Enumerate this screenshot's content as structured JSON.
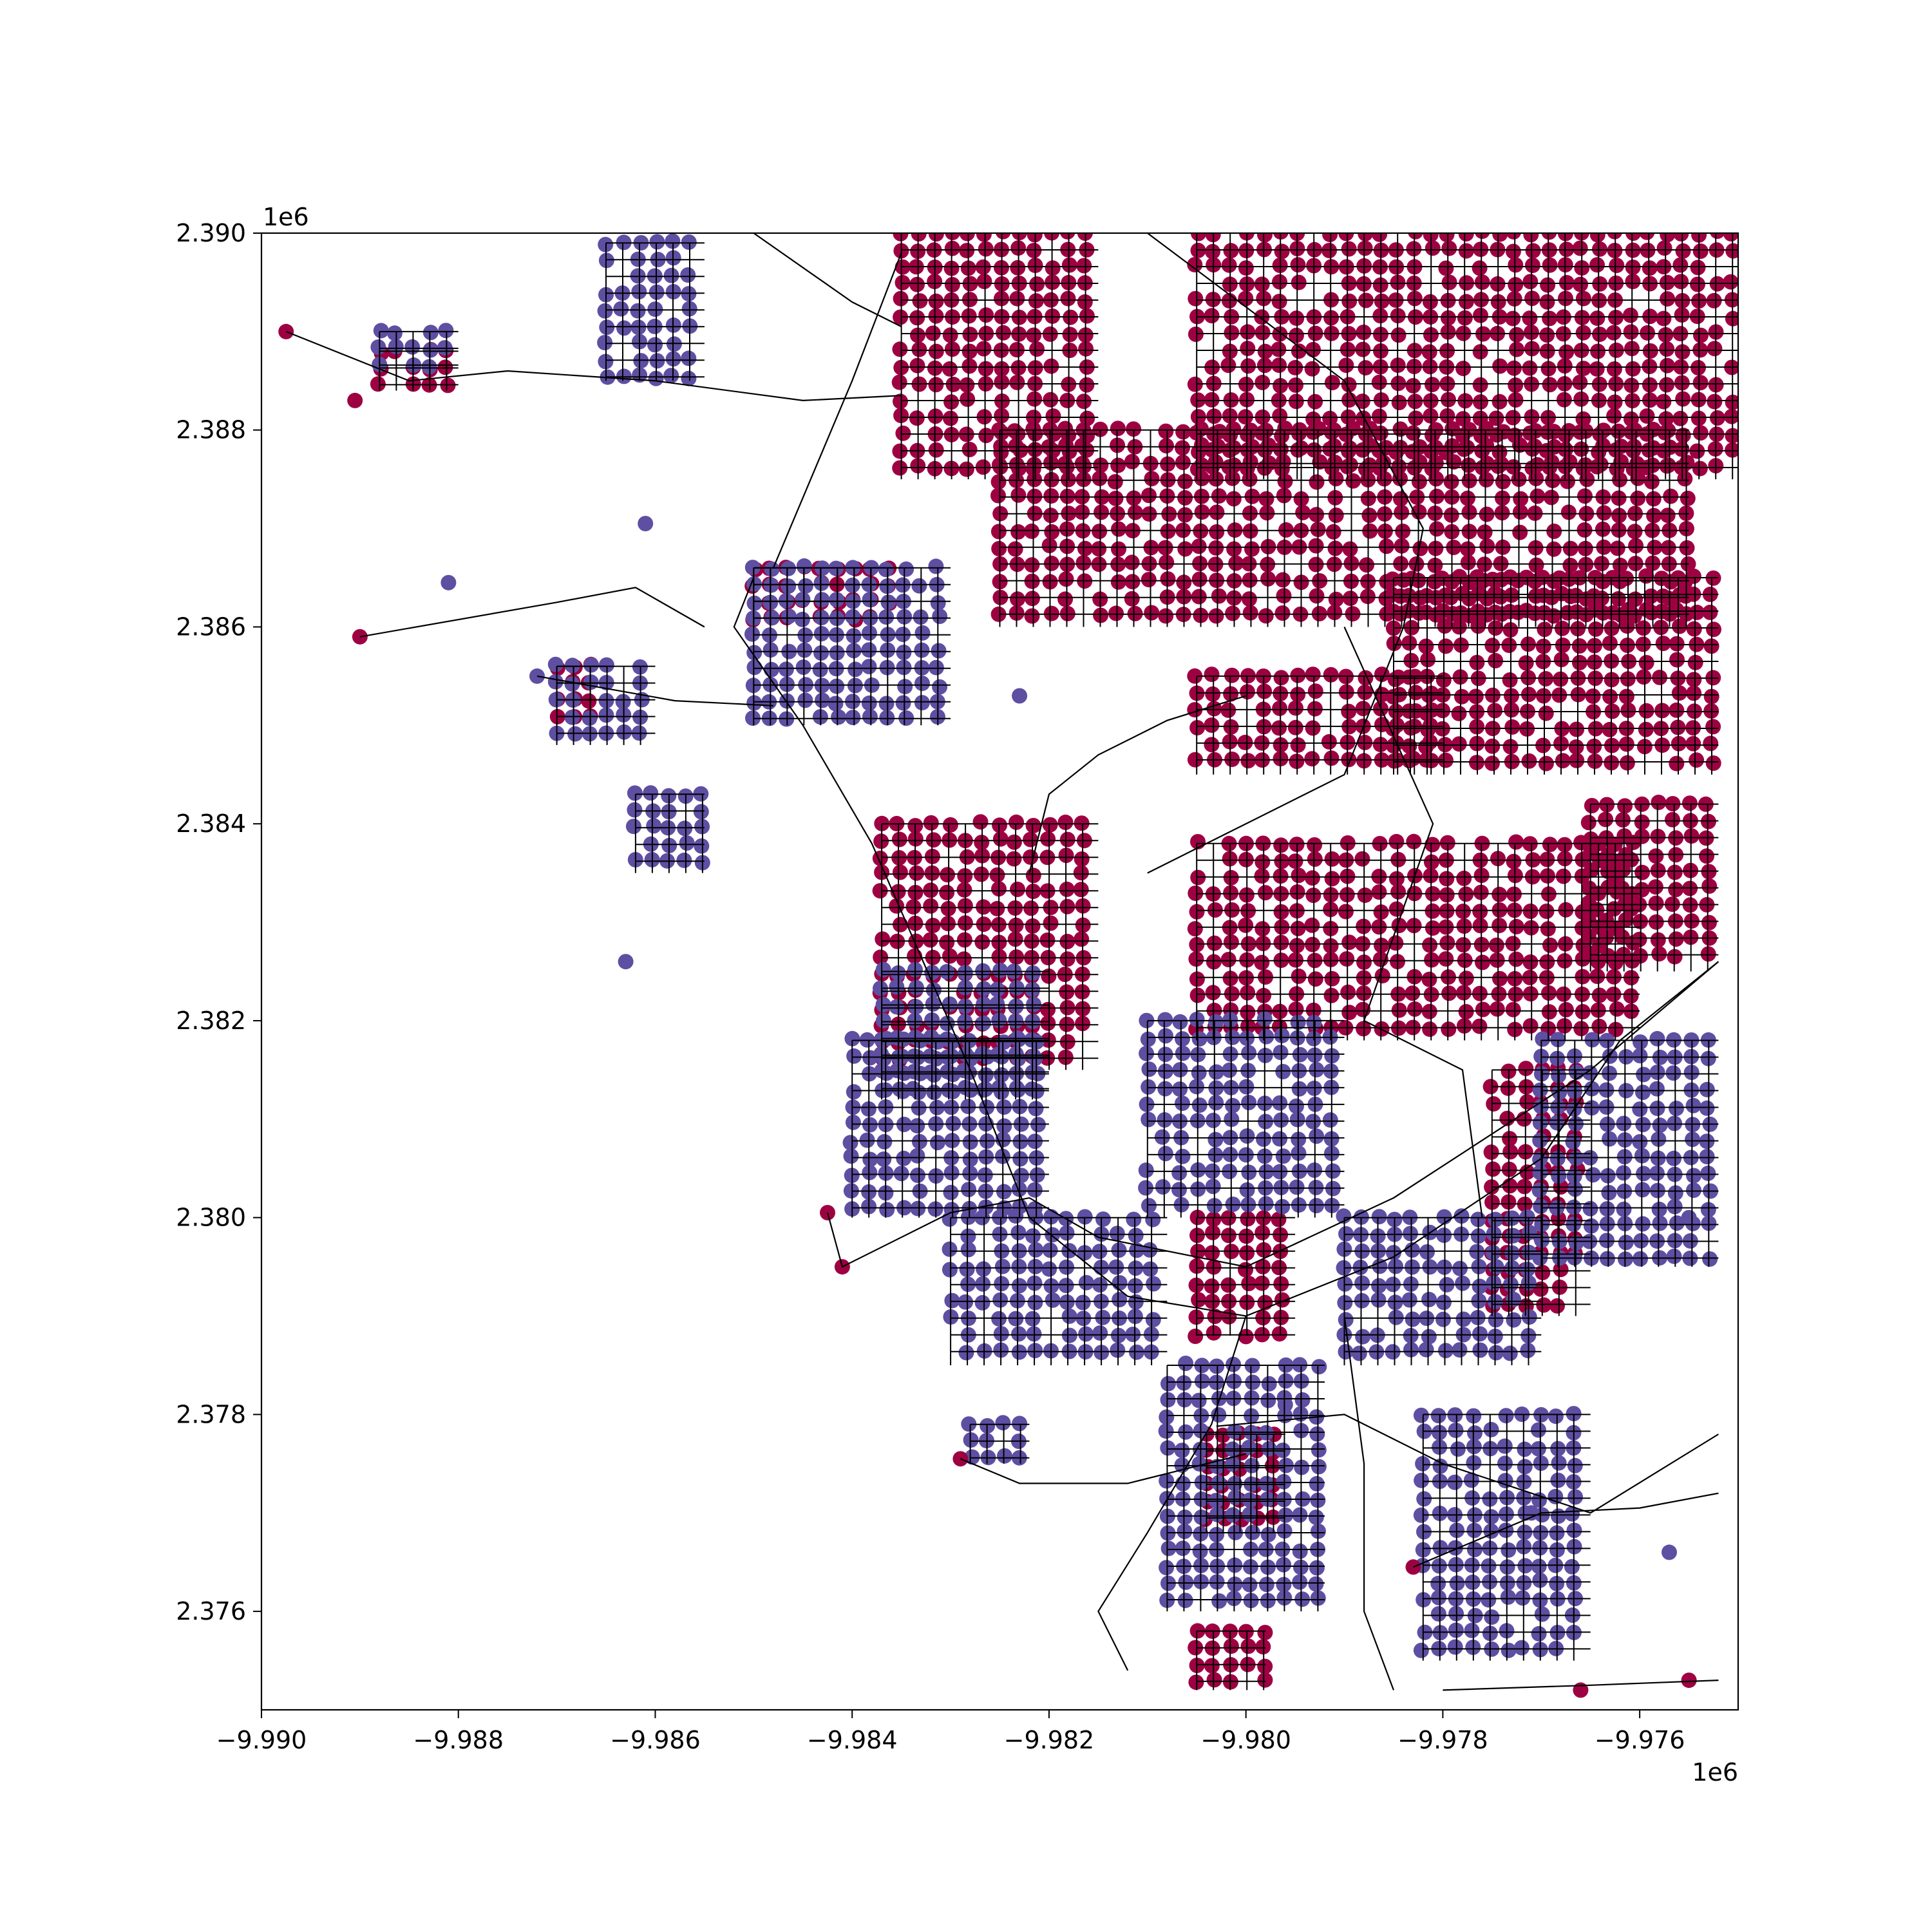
{
  "chart_data": {
    "type": "scatter",
    "title": "",
    "xlabel": "",
    "ylabel": "",
    "x_offset_label": "1e6",
    "y_offset_label": "1e6",
    "xlim": [
      -9.99,
      -9.975
    ],
    "ylim": [
      2.375,
      2.39
    ],
    "xticks": [
      "−9.990",
      "−9.988",
      "−9.986",
      "−9.984",
      "−9.982",
      "−9.980",
      "−9.978",
      "−9.976"
    ],
    "xtick_values": [
      -9.99,
      -9.988,
      -9.986,
      -9.984,
      -9.982,
      -9.98,
      -9.978,
      -9.976
    ],
    "yticks": [
      "2.376",
      "2.378",
      "2.380",
      "2.382",
      "2.384",
      "2.386",
      "2.388",
      "2.390"
    ],
    "ytick_values": [
      2.376,
      2.378,
      2.38,
      2.382,
      2.384,
      2.386,
      2.388,
      2.39
    ],
    "grid": false,
    "colors": {
      "red": "#9e0142",
      "purple": "#5e4fa2",
      "edges": "#000000"
    },
    "clusters": [
      {
        "color": "red",
        "x0": -9.9835,
        "x1": -9.9815,
        "y0": 2.3875,
        "y1": 2.39
      },
      {
        "color": "red",
        "x0": -9.9805,
        "x1": -9.975,
        "y0": 2.3875,
        "y1": 2.39
      },
      {
        "color": "red",
        "x0": -9.9825,
        "x1": -9.9755,
        "y0": 2.386,
        "y1": 2.388
      },
      {
        "color": "red",
        "x0": -9.9785,
        "x1": -9.9752,
        "y0": 2.3845,
        "y1": 2.3865
      },
      {
        "color": "red",
        "x0": -9.9805,
        "x1": -9.978,
        "y0": 2.3845,
        "y1": 2.3855
      },
      {
        "color": "red",
        "x0": -9.985,
        "x1": -9.9835,
        "y0": 2.386,
        "y1": 2.3866
      },
      {
        "color": "red",
        "x0": -9.9805,
        "x1": -9.976,
        "y0": 2.3818,
        "y1": 2.3838
      },
      {
        "color": "red",
        "x0": -9.9765,
        "x1": -9.9752,
        "y0": 2.3825,
        "y1": 2.3842
      },
      {
        "color": "red",
        "x0": -9.9837,
        "x1": -9.9815,
        "y0": 2.3815,
        "y1": 2.384
      },
      {
        "color": "red",
        "x0": -9.9775,
        "x1": -9.9765,
        "y0": 2.379,
        "y1": 2.3815
      },
      {
        "color": "red",
        "x0": -9.9805,
        "x1": -9.9795,
        "y0": 2.3788,
        "y1": 2.38
      },
      {
        "color": "red",
        "x0": -9.9804,
        "x1": -9.9796,
        "y0": 2.3768,
        "y1": 2.3778
      },
      {
        "color": "red",
        "x0": -9.9805,
        "x1": -9.9798,
        "y0": 2.3752,
        "y1": 2.3758
      },
      {
        "color": "red",
        "x0": -9.987,
        "x1": -9.9865,
        "y0": 2.385,
        "y1": 2.3856
      },
      {
        "color": "red",
        "x0": -9.9888,
        "x1": -9.988,
        "y0": 2.3884,
        "y1": 2.3888
      },
      {
        "color": "purple",
        "x0": -9.9865,
        "x1": -9.9855,
        "y0": 2.3885,
        "y1": 2.3899
      },
      {
        "color": "purple",
        "x0": -9.985,
        "x1": -9.983,
        "y0": 2.385,
        "y1": 2.3866
      },
      {
        "color": "purple",
        "x0": -9.9837,
        "x1": -9.982,
        "y0": 2.3812,
        "y1": 2.3825
      },
      {
        "color": "purple",
        "x0": -9.984,
        "x1": -9.982,
        "y0": 2.38,
        "y1": 2.3818
      },
      {
        "color": "purple",
        "x0": -9.981,
        "x1": -9.979,
        "y0": 2.38,
        "y1": 2.382
      },
      {
        "color": "purple",
        "x0": -9.979,
        "x1": -9.977,
        "y0": 2.3785,
        "y1": 2.38
      },
      {
        "color": "purple",
        "x0": -9.977,
        "x1": -9.9752,
        "y0": 2.3795,
        "y1": 2.3818
      },
      {
        "color": "purple",
        "x0": -9.983,
        "x1": -9.9808,
        "y0": 2.3785,
        "y1": 2.38
      },
      {
        "color": "purple",
        "x0": -9.9782,
        "x1": -9.9765,
        "y0": 2.3755,
        "y1": 2.378
      },
      {
        "color": "purple",
        "x0": -9.9808,
        "x1": -9.9792,
        "y0": 2.376,
        "y1": 2.3785
      },
      {
        "color": "purple",
        "x0": -9.987,
        "x1": -9.986,
        "y0": 2.3848,
        "y1": 2.3856
      },
      {
        "color": "purple",
        "x0": -9.9862,
        "x1": -9.9855,
        "y0": 2.3835,
        "y1": 2.3843
      },
      {
        "color": "purple",
        "x0": -9.9828,
        "x1": -9.9822,
        "y0": 2.3775,
        "y1": 2.3779
      },
      {
        "color": "purple",
        "x0": -9.9888,
        "x1": -9.988,
        "y0": 2.3885,
        "y1": 2.389
      }
    ],
    "isolated_points": [
      {
        "x": -9.98975,
        "y": 2.389,
        "color": "red"
      },
      {
        "x": -9.98905,
        "y": 2.3883,
        "color": "red"
      },
      {
        "x": -9.989,
        "y": 2.3859,
        "color": "red"
      },
      {
        "x": -9.98425,
        "y": 2.38005,
        "color": "red"
      },
      {
        "x": -9.9841,
        "y": 2.3795,
        "color": "red"
      },
      {
        "x": -9.9829,
        "y": 2.37755,
        "color": "red"
      },
      {
        "x": -9.9783,
        "y": 2.37645,
        "color": "red"
      },
      {
        "x": -9.9766,
        "y": 2.3752,
        "color": "red"
      },
      {
        "x": -9.9755,
        "y": 2.3753,
        "color": "red"
      },
      {
        "x": -9.9881,
        "y": 2.38645,
        "color": "purple"
      },
      {
        "x": -9.9861,
        "y": 2.38705,
        "color": "purple"
      },
      {
        "x": -9.9872,
        "y": 2.3855,
        "color": "purple"
      },
      {
        "x": -9.9863,
        "y": 2.3826,
        "color": "purple"
      },
      {
        "x": -9.9823,
        "y": 2.3853,
        "color": "purple"
      },
      {
        "x": -9.9796,
        "y": 2.3781,
        "color": "purple"
      },
      {
        "x": -9.9771,
        "y": 2.377,
        "color": "purple"
      },
      {
        "x": -9.9757,
        "y": 2.3766,
        "color": "purple"
      },
      {
        "x": -9.9755,
        "y": 2.38,
        "color": "purple"
      }
    ],
    "lines": [
      [
        [
          -9.98975,
          2.389
        ],
        [
          -9.9885,
          2.3885
        ],
        [
          -9.9875,
          2.3886
        ],
        [
          -9.986,
          2.3885
        ],
        [
          -9.9845,
          2.3883
        ],
        [
          -9.9835,
          2.38835
        ]
      ],
      [
        [
          -9.989,
          2.3859
        ],
        [
          -9.987,
          2.38625
        ],
        [
          -9.9862,
          2.3864
        ],
        [
          -9.9855,
          2.386
        ]
      ],
      [
        [
          -9.9872,
          2.3855
        ],
        [
          -9.9858,
          2.38525
        ],
        [
          -9.9848,
          2.3852
        ]
      ],
      [
        [
          -9.98425,
          2.38005
        ],
        [
          -9.9841,
          2.3795
        ],
        [
          -9.983,
          2.38005
        ],
        [
          -9.9822,
          2.3802
        ],
        [
          -9.9815,
          2.3798
        ],
        [
          -9.98,
          2.3795
        ],
        [
          -9.9785,
          2.3802
        ],
        [
          -9.9765,
          2.3815
        ],
        [
          -9.9752,
          2.3826
        ]
      ],
      [
        [
          -9.985,
          2.3865
        ],
        [
          -9.9852,
          2.386
        ],
        [
          -9.9845,
          2.385
        ],
        [
          -9.9838,
          2.3838
        ],
        [
          -9.9828,
          2.3815
        ],
        [
          -9.9822,
          2.38
        ],
        [
          -9.9812,
          2.3792
        ],
        [
          -9.98,
          2.379
        ],
        [
          -9.9785,
          2.3796
        ],
        [
          -9.977,
          2.3806
        ],
        [
          -9.9762,
          2.3818
        ],
        [
          -9.9752,
          2.3826
        ]
      ],
      [
        [
          -9.9848,
          2.3866
        ],
        [
          -9.984,
          2.3885
        ],
        [
          -9.9835,
          2.3898
        ]
      ],
      [
        [
          -9.985,
          2.39
        ],
        [
          -9.984,
          2.3893
        ],
        [
          -9.9835,
          2.38905
        ]
      ],
      [
        [
          -9.98,
          2.3853
        ],
        [
          -9.9808,
          2.38505
        ],
        [
          -9.9815,
          2.3847
        ],
        [
          -9.982,
          2.3843
        ],
        [
          -9.9822,
          2.3835
        ]
      ],
      [
        [
          -9.981,
          2.39
        ],
        [
          -9.979,
          2.3885
        ],
        [
          -9.9782,
          2.387
        ],
        [
          -9.9784,
          2.386
        ],
        [
          -9.979,
          2.3845
        ],
        [
          -9.981,
          2.3835
        ]
      ],
      [
        [
          -9.979,
          2.386
        ],
        [
          -9.9781,
          2.384
        ],
        [
          -9.9788,
          2.382
        ],
        [
          -9.9778,
          2.3815
        ],
        [
          -9.9776,
          2.38
        ]
      ],
      [
        [
          -9.9803,
          2.37788
        ],
        [
          -9.979,
          2.378
        ],
        [
          -9.978,
          2.3775
        ],
        [
          -9.9765,
          2.377
        ],
        [
          -9.9752,
          2.3778
        ]
      ],
      [
        [
          -9.9783,
          2.37645
        ],
        [
          -9.977,
          2.377
        ],
        [
          -9.976,
          2.37705
        ],
        [
          -9.9752,
          2.3772
        ]
      ],
      [
        [
          -9.98,
          2.379
        ],
        [
          -9.98035,
          2.3779
        ],
        [
          -9.981,
          2.3768
        ],
        [
          -9.9815,
          2.376
        ],
        [
          -9.9812,
          2.3754
        ]
      ],
      [
        [
          -9.979,
          2.379
        ],
        [
          -9.9788,
          2.3775
        ],
        [
          -9.9788,
          2.376
        ],
        [
          -9.9785,
          2.3752
        ]
      ],
      [
        [
          -9.978,
          2.3752
        ],
        [
          -9.9765,
          2.37525
        ],
        [
          -9.9752,
          2.3753
        ]
      ],
      [
        [
          -9.9829,
          2.37755
        ],
        [
          -9.9823,
          2.3773
        ],
        [
          -9.9812,
          2.3773
        ],
        [
          -9.98,
          2.3776
        ]
      ]
    ]
  }
}
